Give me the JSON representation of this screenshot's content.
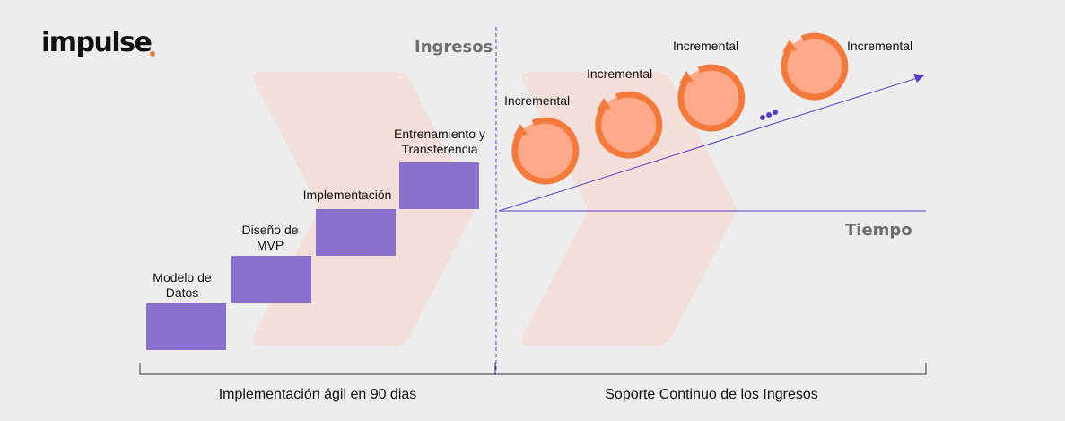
{
  "logo": {
    "text": "impulse"
  },
  "axis": {
    "y_label": "Ingresos",
    "x_label": "Tiempo"
  },
  "colors": {
    "step_fill": "#8a70cd",
    "circle_fill": "#fca98a",
    "circle_ring": "#f47a3c",
    "chevron": "#f2dfd9",
    "axis_line": "#5b3cc4"
  },
  "steps": [
    {
      "label": "Modelo de Datos"
    },
    {
      "label": "Diseño de MVP"
    },
    {
      "label": "Implementación"
    },
    {
      "label": "Entrenamiento y Transferencia"
    }
  ],
  "incrementals": [
    {
      "label": "Incremental"
    },
    {
      "label": "Incremental"
    },
    {
      "label": "Incremental"
    },
    {
      "label": "Incremental"
    }
  ],
  "ellipsis_icon": "three-dots-icon",
  "footer": {
    "left": "Implementación ágil en 90 dias",
    "right": "Soporte Continuo de los Ingresos"
  }
}
